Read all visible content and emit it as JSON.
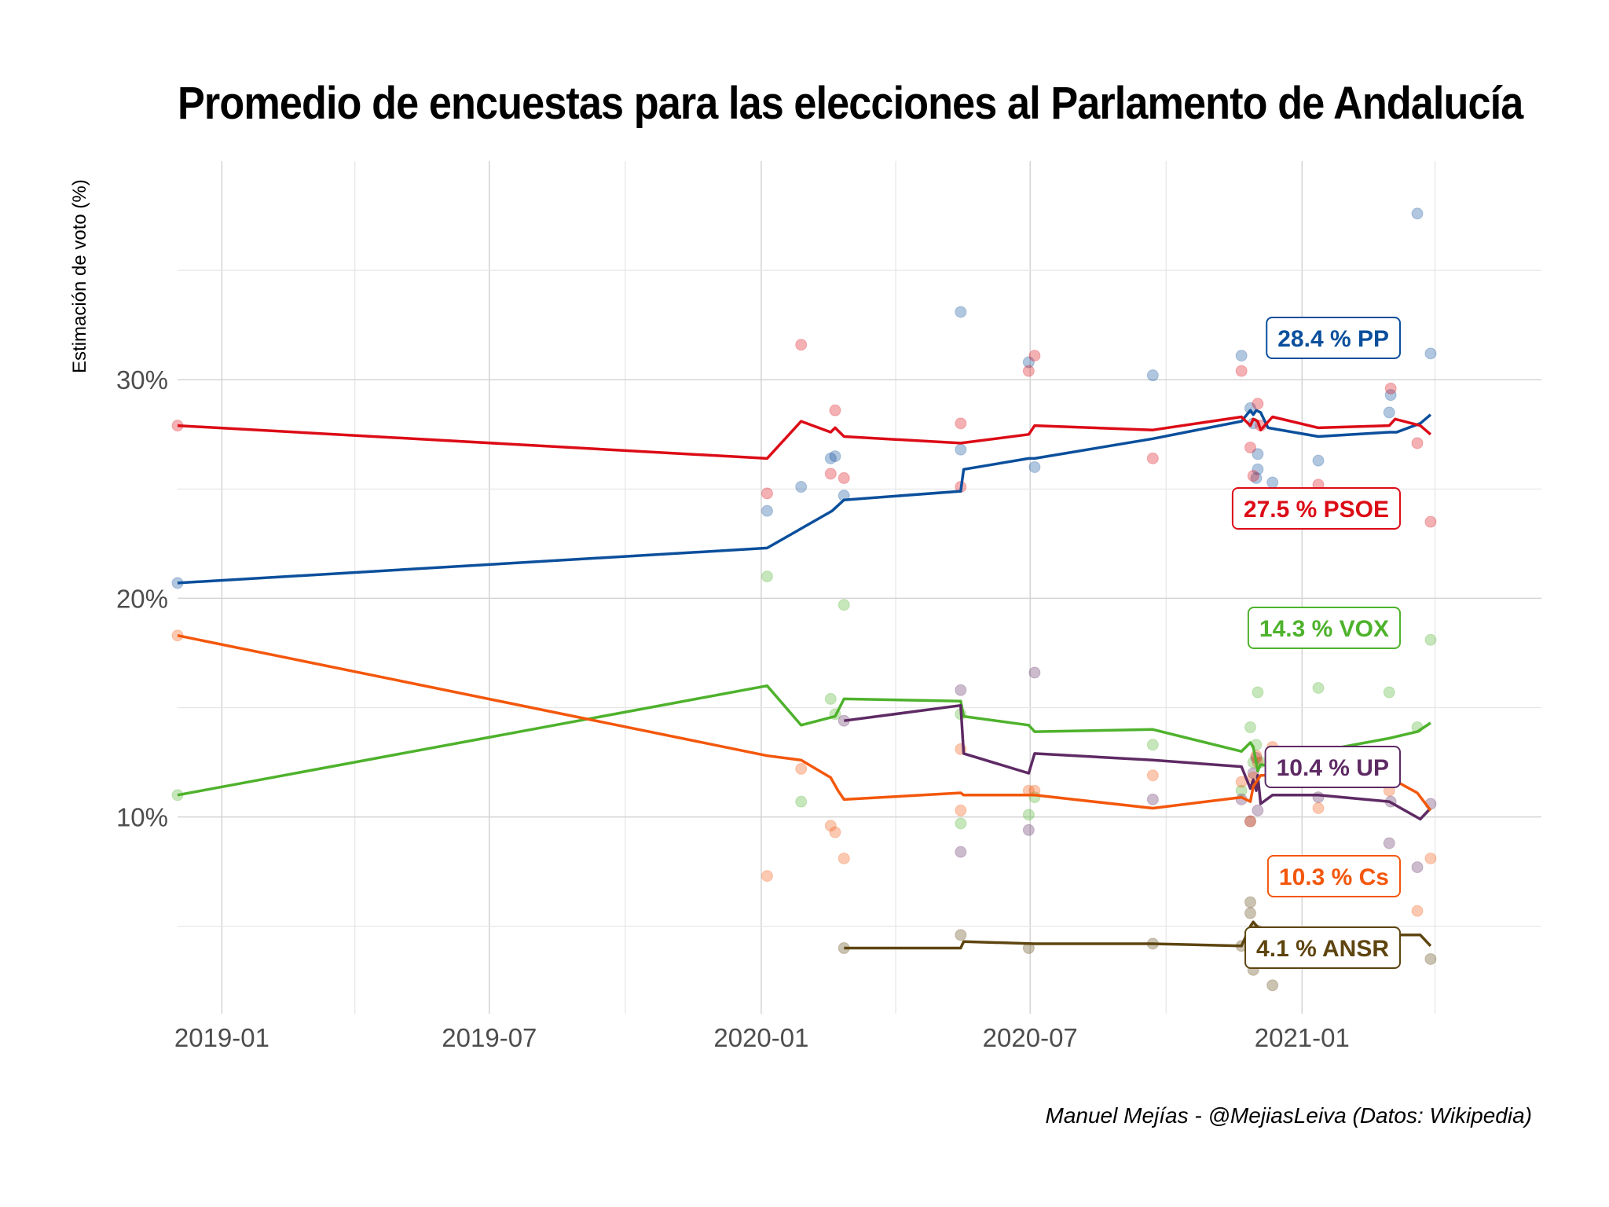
{
  "chart_data": {
    "type": "line",
    "title": "Promedio de encuestas para las elecciones al Parlamento de Andalucía",
    "ylabel": "Estimación de voto (%)",
    "xlabel": "",
    "caption": "Manuel Mejías - @MejiasLeiva (Datos: Wikipedia)",
    "x_ticks": [
      "2019-01",
      "2019-07",
      "2020-01",
      "2020-07",
      "2021-01"
    ],
    "y_ticks": [
      10,
      20,
      30
    ],
    "y_tick_labels": [
      "10%",
      "20%",
      "30%"
    ],
    "xlim": [
      "2018-12-02",
      "2021-06-12"
    ],
    "ylim": [
      1,
      40
    ],
    "grid": true,
    "series": [
      {
        "name": "PP",
        "label": "28.4 % PP",
        "color": "#0b4f9c",
        "line": [
          [
            "2018-12-02",
            20.7
          ],
          [
            "2020-01-05",
            22.3
          ],
          [
            "2020-02-18",
            24.0
          ],
          [
            "2020-02-26",
            24.5
          ],
          [
            "2020-05-15",
            24.9
          ],
          [
            "2020-05-17",
            25.9
          ],
          [
            "2020-06-30",
            26.4
          ],
          [
            "2020-07-04",
            26.4
          ],
          [
            "2020-09-22",
            27.3
          ],
          [
            "2020-11-21",
            28.1
          ],
          [
            "2020-11-27",
            28.6
          ],
          [
            "2020-11-29",
            28.4
          ],
          [
            "2020-12-01",
            28.6
          ],
          [
            "2020-12-04",
            28.5
          ],
          [
            "2020-12-09",
            27.8
          ],
          [
            "2021-01-12",
            27.4
          ],
          [
            "2021-03-01",
            27.6
          ],
          [
            "2021-03-06",
            27.6
          ],
          [
            "2021-03-22",
            28.0
          ],
          [
            "2021-03-29",
            28.4
          ]
        ],
        "points": [
          [
            "2018-12-02",
            20.7
          ],
          [
            "2020-01-05",
            24.0
          ],
          [
            "2020-01-28",
            25.1
          ],
          [
            "2020-02-17",
            26.4
          ],
          [
            "2020-02-20",
            26.5
          ],
          [
            "2020-02-26",
            24.7
          ],
          [
            "2020-05-15",
            26.8
          ],
          [
            "2020-05-15",
            33.1
          ],
          [
            "2020-06-30",
            30.8
          ],
          [
            "2020-07-04",
            26.0
          ],
          [
            "2020-09-22",
            30.2
          ],
          [
            "2020-11-21",
            31.1
          ],
          [
            "2020-11-27",
            28.7
          ],
          [
            "2020-11-29",
            28.0
          ],
          [
            "2020-12-01",
            25.5
          ],
          [
            "2020-12-02",
            26.6
          ],
          [
            "2020-12-02",
            25.9
          ],
          [
            "2020-12-12",
            25.3
          ],
          [
            "2021-01-12",
            26.3
          ],
          [
            "2021-03-01",
            28.5
          ],
          [
            "2021-03-02",
            29.3
          ],
          [
            "2021-03-20",
            37.6
          ],
          [
            "2021-03-29",
            31.2
          ]
        ]
      },
      {
        "name": "PSOE",
        "label": "27.5 % PSOE",
        "color": "#dc0c17",
        "line": [
          [
            "2018-12-02",
            27.9
          ],
          [
            "2020-01-05",
            26.4
          ],
          [
            "2020-01-28",
            28.1
          ],
          [
            "2020-02-17",
            27.6
          ],
          [
            "2020-02-20",
            27.8
          ],
          [
            "2020-02-26",
            27.4
          ],
          [
            "2020-05-15",
            27.1
          ],
          [
            "2020-06-30",
            27.5
          ],
          [
            "2020-07-04",
            27.9
          ],
          [
            "2020-09-22",
            27.7
          ],
          [
            "2020-11-21",
            28.3
          ],
          [
            "2020-11-27",
            27.9
          ],
          [
            "2020-11-29",
            28.2
          ],
          [
            "2020-12-02",
            28.1
          ],
          [
            "2020-12-04",
            27.7
          ],
          [
            "2020-12-12",
            28.3
          ],
          [
            "2021-01-12",
            27.8
          ],
          [
            "2021-03-01",
            27.9
          ],
          [
            "2021-03-05",
            28.2
          ],
          [
            "2021-03-22",
            27.9
          ],
          [
            "2021-03-29",
            27.5
          ]
        ],
        "points": [
          [
            "2018-12-02",
            27.9
          ],
          [
            "2020-01-05",
            24.8
          ],
          [
            "2020-01-28",
            31.6
          ],
          [
            "2020-02-17",
            25.7
          ],
          [
            "2020-02-20",
            28.6
          ],
          [
            "2020-02-26",
            25.5
          ],
          [
            "2020-05-15",
            28.0
          ],
          [
            "2020-05-15",
            25.1
          ],
          [
            "2020-06-30",
            30.4
          ],
          [
            "2020-07-04",
            31.1
          ],
          [
            "2020-09-22",
            26.4
          ],
          [
            "2020-11-21",
            30.4
          ],
          [
            "2020-11-27",
            26.9
          ],
          [
            "2020-11-29",
            25.6
          ],
          [
            "2020-12-02",
            28.9
          ],
          [
            "2020-12-04",
            27.9
          ],
          [
            "2020-12-12",
            31.4
          ],
          [
            "2021-01-12",
            25.2
          ],
          [
            "2021-03-01",
            32.3
          ],
          [
            "2021-03-02",
            29.6
          ],
          [
            "2021-03-20",
            27.1
          ],
          [
            "2021-03-29",
            23.5
          ]
        ]
      },
      {
        "name": "VOX",
        "label": "14.3 % VOX",
        "color": "#4eb22c",
        "line": [
          [
            "2018-12-02",
            11.0
          ],
          [
            "2020-01-05",
            16.0
          ],
          [
            "2020-01-28",
            14.2
          ],
          [
            "2020-02-20",
            14.6
          ],
          [
            "2020-02-26",
            15.4
          ],
          [
            "2020-05-15",
            15.3
          ],
          [
            "2020-05-17",
            14.6
          ],
          [
            "2020-06-30",
            14.2
          ],
          [
            "2020-07-04",
            13.9
          ],
          [
            "2020-09-22",
            14.0
          ],
          [
            "2020-11-21",
            13.0
          ],
          [
            "2020-11-27",
            13.4
          ],
          [
            "2020-11-29",
            13.2
          ],
          [
            "2020-12-02",
            12.1
          ],
          [
            "2020-12-04",
            12.4
          ],
          [
            "2020-12-12",
            12.3
          ],
          [
            "2021-01-12",
            13.0
          ],
          [
            "2021-03-01",
            13.6
          ],
          [
            "2021-03-20",
            13.9
          ],
          [
            "2021-03-29",
            14.3
          ]
        ],
        "points": [
          [
            "2018-12-02",
            11.0
          ],
          [
            "2020-01-05",
            21.0
          ],
          [
            "2020-01-28",
            10.7
          ],
          [
            "2020-02-17",
            15.4
          ],
          [
            "2020-02-20",
            14.7
          ],
          [
            "2020-02-26",
            19.7
          ],
          [
            "2020-05-15",
            14.7
          ],
          [
            "2020-05-15",
            9.7
          ],
          [
            "2020-06-30",
            10.1
          ],
          [
            "2020-07-04",
            10.9
          ],
          [
            "2020-09-22",
            13.3
          ],
          [
            "2020-11-21",
            11.2
          ],
          [
            "2020-11-27",
            14.1
          ],
          [
            "2020-11-29",
            12.5
          ],
          [
            "2020-12-01",
            13.3
          ],
          [
            "2020-12-02",
            15.7
          ],
          [
            "2020-12-04",
            12.5
          ],
          [
            "2020-12-12",
            11.9
          ],
          [
            "2021-01-12",
            15.9
          ],
          [
            "2021-03-01",
            15.7
          ],
          [
            "2021-03-20",
            14.1
          ],
          [
            "2021-03-29",
            18.1
          ]
        ]
      },
      {
        "name": "UP",
        "label": "10.4 % UP",
        "color": "#5e2a64",
        "line": [
          [
            "2020-02-26",
            14.4
          ],
          [
            "2020-05-15",
            15.1
          ],
          [
            "2020-05-17",
            12.9
          ],
          [
            "2020-06-30",
            12.0
          ],
          [
            "2020-07-04",
            12.9
          ],
          [
            "2020-09-22",
            12.6
          ],
          [
            "2020-11-21",
            12.3
          ],
          [
            "2020-11-27",
            11.3
          ],
          [
            "2020-11-29",
            11.7
          ],
          [
            "2020-12-01",
            11.2
          ],
          [
            "2020-12-02",
            11.9
          ],
          [
            "2020-12-04",
            10.6
          ],
          [
            "2020-12-12",
            11.0
          ],
          [
            "2021-01-12",
            11.0
          ],
          [
            "2021-03-01",
            10.7
          ],
          [
            "2021-03-22",
            9.9
          ],
          [
            "2021-03-29",
            10.4
          ]
        ],
        "points": [
          [
            "2020-02-26",
            14.4
          ],
          [
            "2020-05-15",
            15.8
          ],
          [
            "2020-05-15",
            8.4
          ],
          [
            "2020-06-30",
            9.4
          ],
          [
            "2020-07-04",
            16.6
          ],
          [
            "2020-09-22",
            10.8
          ],
          [
            "2020-11-21",
            10.8
          ],
          [
            "2020-11-27",
            9.8
          ],
          [
            "2020-11-29",
            12.0
          ],
          [
            "2020-12-01",
            12.7
          ],
          [
            "2020-12-02",
            10.3
          ],
          [
            "2020-12-12",
            11.9
          ],
          [
            "2021-01-12",
            10.9
          ],
          [
            "2021-03-01",
            8.8
          ],
          [
            "2021-03-02",
            10.7
          ],
          [
            "2021-03-20",
            7.7
          ],
          [
            "2021-03-29",
            10.6
          ]
        ]
      },
      {
        "name": "Cs",
        "label": "10.3 % Cs",
        "color": "#f3570c",
        "line": [
          [
            "2018-12-02",
            18.3
          ],
          [
            "2020-01-05",
            12.8
          ],
          [
            "2020-01-28",
            12.6
          ],
          [
            "2020-02-17",
            11.8
          ],
          [
            "2020-02-22",
            11.2
          ],
          [
            "2020-02-26",
            10.8
          ],
          [
            "2020-05-15",
            11.1
          ],
          [
            "2020-05-17",
            11.0
          ],
          [
            "2020-07-04",
            11.0
          ],
          [
            "2020-09-22",
            10.4
          ],
          [
            "2020-11-21",
            10.9
          ],
          [
            "2020-11-27",
            10.7
          ],
          [
            "2020-11-29",
            11.4
          ],
          [
            "2020-12-02",
            11.7
          ],
          [
            "2020-12-04",
            11.9
          ],
          [
            "2020-12-12",
            11.9
          ],
          [
            "2021-01-12",
            11.5
          ],
          [
            "2021-03-01",
            11.8
          ],
          [
            "2021-03-20",
            11.1
          ],
          [
            "2021-03-29",
            10.3
          ]
        ],
        "points": [
          [
            "2018-12-02",
            18.3
          ],
          [
            "2020-01-05",
            7.3
          ],
          [
            "2020-01-28",
            12.2
          ],
          [
            "2020-02-17",
            9.6
          ],
          [
            "2020-02-20",
            9.3
          ],
          [
            "2020-02-26",
            8.1
          ],
          [
            "2020-05-15",
            13.1
          ],
          [
            "2020-05-15",
            10.3
          ],
          [
            "2020-06-30",
            11.2
          ],
          [
            "2020-07-04",
            11.2
          ],
          [
            "2020-09-22",
            11.9
          ],
          [
            "2020-11-21",
            11.6
          ],
          [
            "2020-11-27",
            9.8
          ],
          [
            "2020-11-29",
            11.8
          ],
          [
            "2020-12-01",
            12.8
          ],
          [
            "2020-12-02",
            12.5
          ],
          [
            "2020-12-12",
            13.2
          ],
          [
            "2021-01-12",
            10.4
          ],
          [
            "2021-03-01",
            11.2
          ],
          [
            "2021-03-20",
            5.7
          ],
          [
            "2021-03-29",
            8.1
          ]
        ]
      },
      {
        "name": "ANSR",
        "label": "4.1 % ANSR",
        "color": "#5e4510",
        "line": [
          [
            "2020-02-26",
            4.0
          ],
          [
            "2020-05-15",
            4.0
          ],
          [
            "2020-05-17",
            4.3
          ],
          [
            "2020-07-04",
            4.2
          ],
          [
            "2020-09-22",
            4.2
          ],
          [
            "2020-11-21",
            4.1
          ],
          [
            "2020-11-27",
            5.0
          ],
          [
            "2020-11-29",
            5.2
          ],
          [
            "2020-12-04",
            4.8
          ],
          [
            "2020-12-12",
            4.7
          ],
          [
            "2021-01-12",
            4.7
          ],
          [
            "2021-03-01",
            4.6
          ],
          [
            "2021-03-22",
            4.6
          ],
          [
            "2021-03-29",
            4.1
          ]
        ],
        "points": [
          [
            "2020-02-26",
            4.0
          ],
          [
            "2020-05-15",
            4.6
          ],
          [
            "2020-06-30",
            4.0
          ],
          [
            "2020-09-22",
            4.2
          ],
          [
            "2020-11-21",
            4.1
          ],
          [
            "2020-11-27",
            6.1
          ],
          [
            "2020-11-27",
            5.6
          ],
          [
            "2020-11-29",
            4.8
          ],
          [
            "2020-11-29",
            3.0
          ],
          [
            "2020-12-02",
            4.8
          ],
          [
            "2020-12-12",
            2.3
          ],
          [
            "2021-03-01",
            4.7
          ],
          [
            "2021-03-29",
            3.5
          ]
        ]
      }
    ]
  }
}
